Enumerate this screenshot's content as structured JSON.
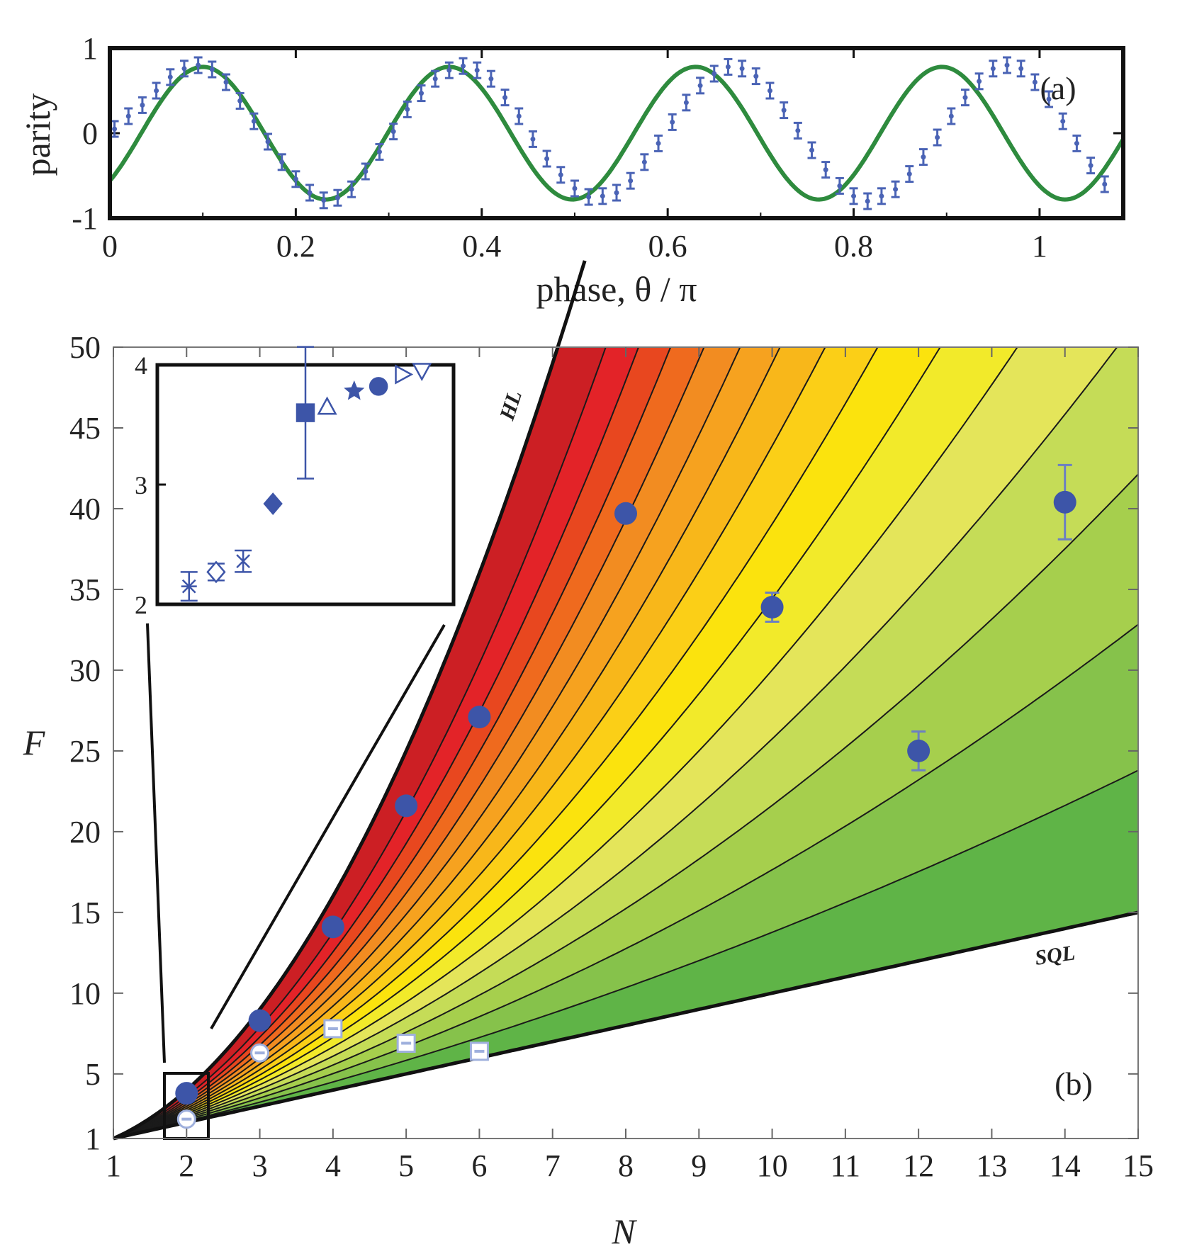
{
  "chart_data": [
    {
      "panel": "(a)",
      "type": "line",
      "xlabel": "phase, θ / π",
      "ylabel": "parity",
      "xlim": [
        0,
        1.09
      ],
      "ylim": [
        -1,
        1
      ],
      "xticks": [
        0,
        0.2,
        0.4,
        0.6,
        0.8,
        1
      ],
      "xtick_labels": [
        "0",
        "0.2",
        "0.4",
        "0.6",
        "0.8",
        "1"
      ],
      "yticks": [
        -1,
        0,
        1
      ],
      "ytick_labels": [
        "-1",
        "0",
        "1"
      ],
      "fit": {
        "name": "fit",
        "color": "#2e8b3e",
        "amplitude": 0.78,
        "period": 0.265,
        "peak_at": 0.1
      },
      "series": [
        {
          "name": "measured parity",
          "color": "#4a63b5",
          "x": [
            0.005,
            0.02,
            0.035,
            0.05,
            0.065,
            0.08,
            0.095,
            0.11,
            0.125,
            0.14,
            0.155,
            0.17,
            0.185,
            0.2,
            0.215,
            0.23,
            0.245,
            0.26,
            0.275,
            0.29,
            0.305,
            0.32,
            0.335,
            0.35,
            0.365,
            0.38,
            0.395,
            0.41,
            0.425,
            0.44,
            0.455,
            0.47,
            0.485,
            0.5,
            0.515,
            0.53,
            0.545,
            0.56,
            0.575,
            0.59,
            0.605,
            0.62,
            0.635,
            0.65,
            0.665,
            0.68,
            0.695,
            0.71,
            0.725,
            0.74,
            0.755,
            0.77,
            0.785,
            0.8,
            0.815,
            0.83,
            0.845,
            0.86,
            0.875,
            0.89,
            0.905,
            0.92,
            0.935,
            0.95,
            0.965,
            0.98,
            0.995,
            1.01,
            1.025,
            1.04,
            1.055,
            1.07
          ],
          "y": [
            0.05,
            0.2,
            0.33,
            0.5,
            0.66,
            0.76,
            0.8,
            0.75,
            0.6,
            0.38,
            0.14,
            -0.1,
            -0.34,
            -0.54,
            -0.7,
            -0.79,
            -0.76,
            -0.66,
            -0.45,
            -0.22,
            0.02,
            0.28,
            0.47,
            0.64,
            0.74,
            0.79,
            0.74,
            0.64,
            0.42,
            0.2,
            -0.07,
            -0.3,
            -0.49,
            -0.65,
            -0.75,
            -0.74,
            -0.7,
            -0.56,
            -0.34,
            -0.12,
            0.13,
            0.36,
            0.56,
            0.7,
            0.78,
            0.76,
            0.67,
            0.5,
            0.27,
            0.03,
            -0.2,
            -0.43,
            -0.62,
            -0.74,
            -0.8,
            -0.74,
            -0.66,
            -0.48,
            -0.28,
            -0.05,
            0.2,
            0.42,
            0.61,
            0.76,
            0.8,
            0.76,
            0.6,
            0.4,
            0.14,
            -0.12,
            -0.38,
            -0.6
          ]
        }
      ]
    },
    {
      "panel": "(b)",
      "type": "scatter",
      "xlabel": "N",
      "ylabel": "F",
      "xlim": [
        1,
        15
      ],
      "ylim": [
        1,
        50
      ],
      "xticks": [
        1,
        2,
        3,
        4,
        5,
        6,
        7,
        8,
        9,
        10,
        11,
        12,
        13,
        14,
        15
      ],
      "xtick_labels": [
        "1",
        "2",
        "3",
        "4",
        "5",
        "6",
        "7",
        "8",
        "9",
        "10",
        "11",
        "12",
        "13",
        "14",
        "15"
      ],
      "yticks": [
        1,
        5,
        10,
        15,
        20,
        25,
        30,
        35,
        40,
        45,
        50
      ],
      "ytick_labels": [
        "1",
        "5",
        "10",
        "15",
        "20",
        "25",
        "30",
        "35",
        "40",
        "45",
        "50"
      ],
      "bounds": [
        {
          "name": "HL",
          "label": "HL",
          "formula": "F = N^2"
        },
        {
          "name": "SQL",
          "label": "SQL",
          "formula": "F = N"
        }
      ],
      "color_bands": [
        "#cc1f24",
        "#e32328",
        "#e8471f",
        "#ef6a1e",
        "#f28c21",
        "#f6a21f",
        "#f8b71a",
        "#fbcf17",
        "#fbe30d",
        "#f2ea2a",
        "#e4e55a",
        "#c5dc57",
        "#a6cf4d",
        "#86c24b",
        "#5fb447"
      ],
      "series": [
        {
          "name": "filled circles",
          "color": "#3d55a8",
          "x": [
            2,
            3,
            4,
            5,
            6,
            8,
            10,
            12,
            14
          ],
          "y": [
            3.8,
            8.3,
            14.1,
            21.6,
            27.1,
            39.7,
            33.9,
            25,
            40.4
          ],
          "err": [
            0,
            0,
            0,
            0,
            0,
            0,
            0.9,
            1.2,
            2.3
          ]
        },
        {
          "name": "open markers",
          "color": "#9fb0dd",
          "x": [
            2,
            3,
            4,
            5,
            6
          ],
          "y": [
            2.2,
            6.3,
            7.8,
            6.9,
            6.4
          ]
        }
      ],
      "inset": {
        "xlim": [
          0,
          1
        ],
        "ylim": [
          2,
          4
        ],
        "yticks": [
          2,
          3,
          4
        ],
        "ytick_labels": [
          "2",
          "3",
          "4"
        ],
        "points": [
          {
            "marker": "asterisk",
            "x": 0.07,
            "y": 2.15,
            "err": 0.12,
            "filled": false
          },
          {
            "marker": "diamond",
            "x": 0.17,
            "y": 2.27,
            "err": 0.07,
            "filled": false
          },
          {
            "marker": "xbar",
            "x": 0.27,
            "y": 2.36,
            "err": 0.09,
            "filled": false
          },
          {
            "marker": "diamond",
            "x": 0.38,
            "y": 2.84,
            "err": 0,
            "filled": true
          },
          {
            "marker": "square",
            "x": 0.5,
            "y": 3.6,
            "err": 0.55,
            "filled": true
          },
          {
            "marker": "triangle",
            "x": 0.58,
            "y": 3.65,
            "err": 0,
            "filled": false
          },
          {
            "marker": "star",
            "x": 0.68,
            "y": 3.78,
            "err": 0,
            "filled": true
          },
          {
            "marker": "circle",
            "x": 0.77,
            "y": 3.82,
            "err": 0,
            "filled": true
          },
          {
            "marker": "triangle-right",
            "x": 0.86,
            "y": 3.92,
            "err": 0,
            "filled": false
          },
          {
            "marker": "triangle-down",
            "x": 0.93,
            "y": 3.95,
            "err": 0,
            "filled": false
          }
        ]
      }
    }
  ]
}
